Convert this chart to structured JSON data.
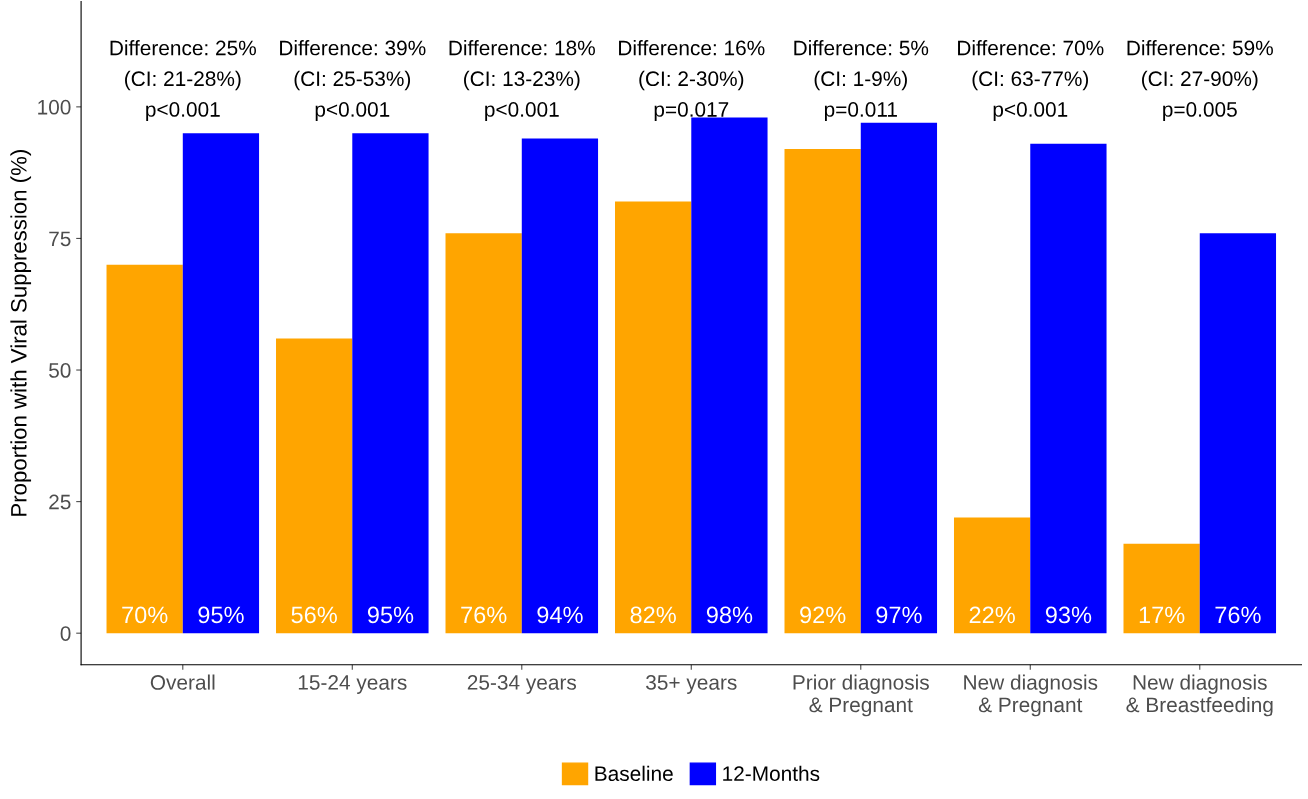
{
  "chart_data": {
    "type": "bar",
    "ylabel": "Proportion with Viral Suppression (%)",
    "categories": [
      "Overall",
      "15-24 years",
      "25-34 years",
      "35+ years",
      "Prior diagnosis\n& Pregnant",
      "New diagnosis\n& Pregnant",
      "New diagnosis\n& Breastfeeding"
    ],
    "series": [
      {
        "name": "Baseline",
        "color": "#ffa500",
        "values": [
          70,
          56,
          76,
          82,
          92,
          22,
          17
        ],
        "value_labels": [
          "70%",
          "56%",
          "76%",
          "82%",
          "92%",
          "22%",
          "17%"
        ]
      },
      {
        "name": "12-Months",
        "color": "#0000ff",
        "values": [
          95,
          95,
          94,
          98,
          97,
          93,
          76
        ],
        "value_labels": [
          "95%",
          "95%",
          "94%",
          "98%",
          "97%",
          "93%",
          "76%"
        ]
      }
    ],
    "annotations": [
      "Difference: 25%\n(CI: 21-28%)\np<0.001",
      "Difference: 39%\n(CI: 25-53%)\np<0.001",
      "Difference: 18%\n(CI: 13-23%)\np<0.001",
      "Difference: 16%\n(CI: 2-30%)\np=0.017",
      "Difference: 5%\n(CI: 1-9%)\np=0.011",
      "Difference: 70%\n(CI: 63-77%)\np<0.001",
      "Difference: 59%\n(CI: 27-90%)\np=0.005"
    ],
    "ylim": [
      -6,
      120
    ],
    "yticks": [
      0,
      25,
      50,
      75,
      100
    ],
    "grid": false,
    "legend": "bottom"
  }
}
